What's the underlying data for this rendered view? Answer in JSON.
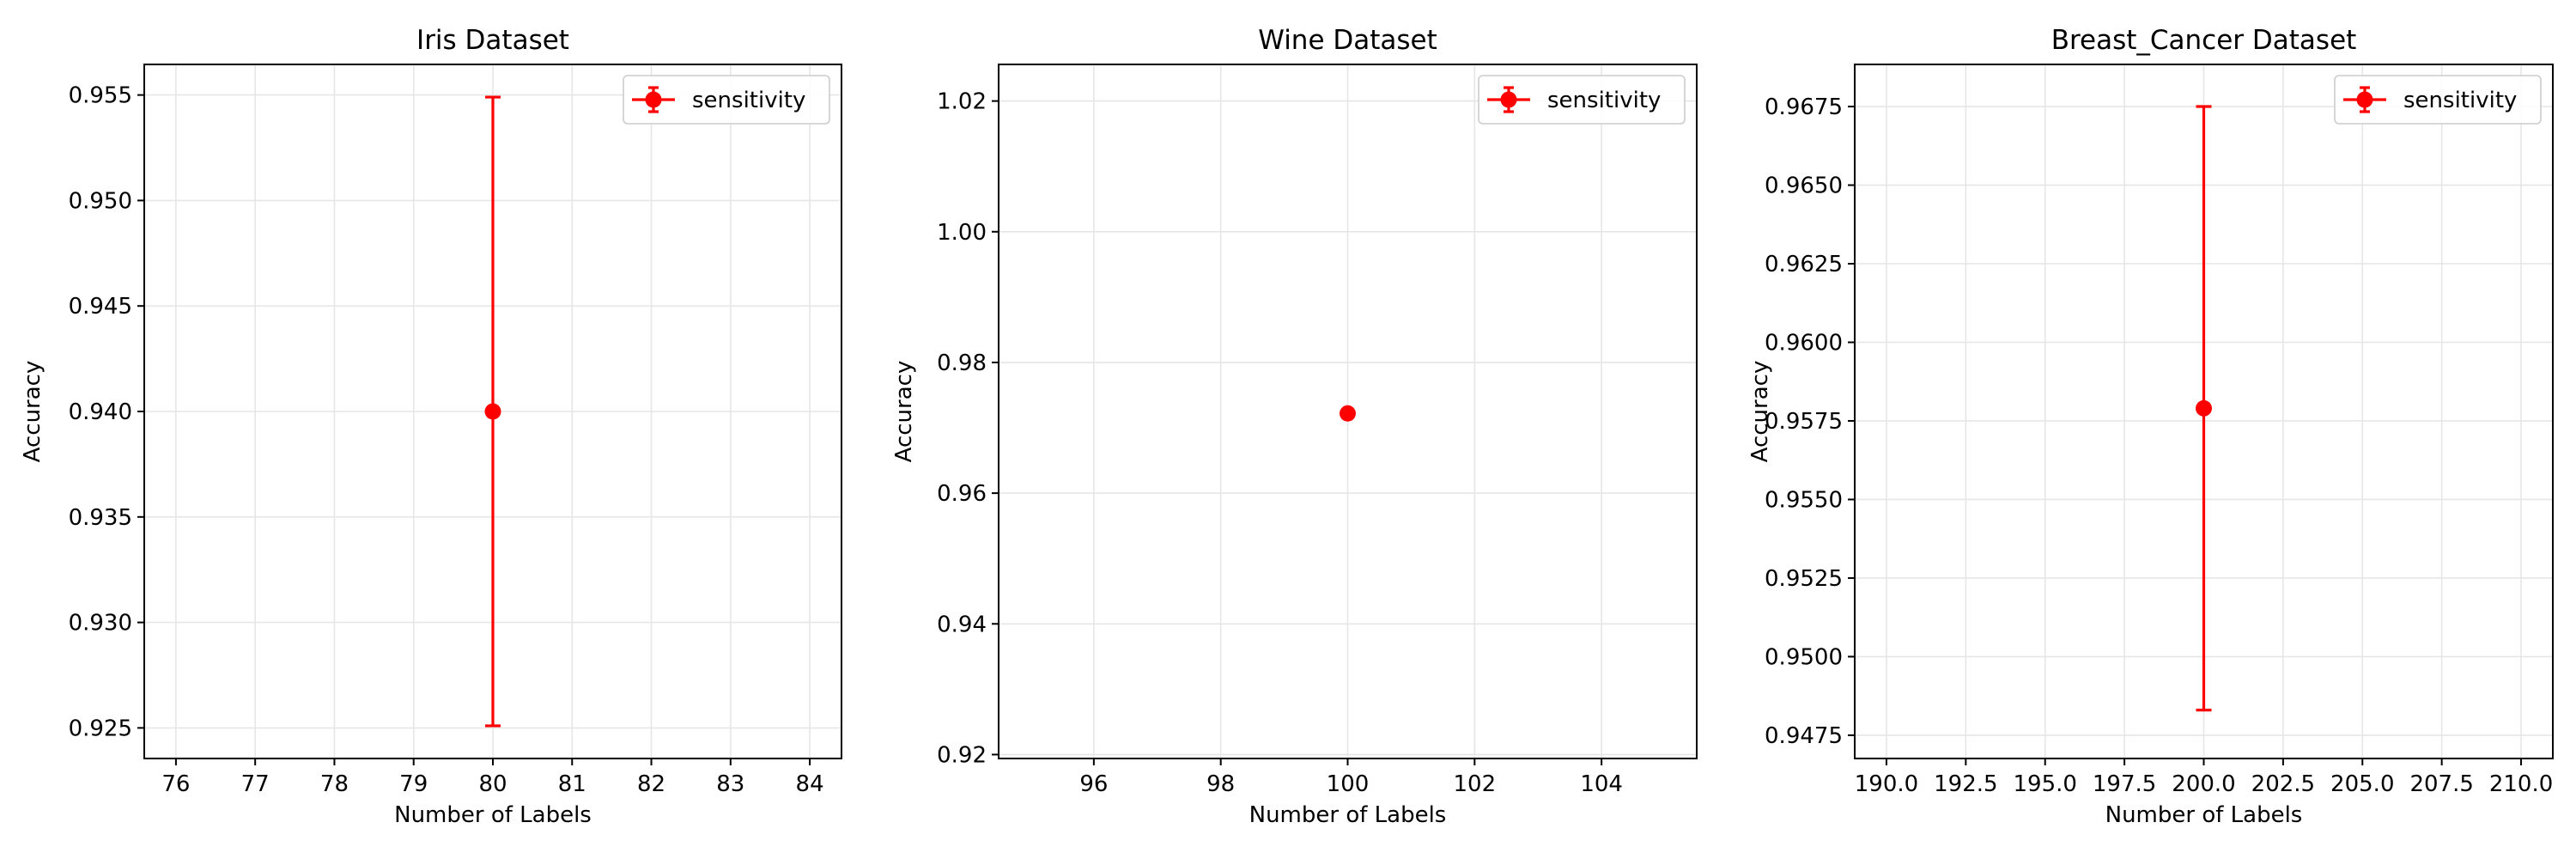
{
  "chart_data": [
    {
      "type": "scatter",
      "title": "Iris Dataset",
      "xlabel": "Number of Labels",
      "ylabel": "Accuracy",
      "xlim": [
        75.6,
        84.4
      ],
      "ylim": [
        0.92355,
        0.95645
      ],
      "xticks": [
        76,
        77,
        78,
        79,
        80,
        81,
        82,
        83,
        84
      ],
      "yticks": [
        0.925,
        0.93,
        0.935,
        0.94,
        0.945,
        0.95,
        0.955
      ],
      "xtick_labels": [
        "76",
        "77",
        "78",
        "79",
        "80",
        "81",
        "82",
        "83",
        "84"
      ],
      "ytick_labels": [
        "0.925",
        "0.930",
        "0.935",
        "0.940",
        "0.945",
        "0.950",
        "0.955"
      ],
      "grid": true,
      "legend_position": "top-right",
      "series": [
        {
          "name": "sensitivity",
          "color": "#ff0000",
          "x": [
            80
          ],
          "y": [
            0.94
          ],
          "yerr_low": [
            0.9251
          ],
          "yerr_high": [
            0.9549
          ]
        }
      ]
    },
    {
      "type": "scatter",
      "title": "Wine Dataset",
      "xlabel": "Number of Labels",
      "ylabel": "Accuracy",
      "xlim": [
        94.5,
        105.5
      ],
      "ylim": [
        0.9194,
        1.0256
      ],
      "xticks": [
        96,
        98,
        100,
        102,
        104
      ],
      "yticks": [
        0.92,
        0.94,
        0.96,
        0.98,
        1.0,
        1.02
      ],
      "xtick_labels": [
        "96",
        "98",
        "100",
        "102",
        "104"
      ],
      "ytick_labels": [
        "0.92",
        "0.94",
        "0.96",
        "0.98",
        "1.00",
        "1.02"
      ],
      "grid": true,
      "legend_position": "top-right",
      "series": [
        {
          "name": "sensitivity",
          "color": "#ff0000",
          "x": [
            100
          ],
          "y": [
            0.9722
          ],
          "yerr_low": [
            0.9722
          ],
          "yerr_high": [
            0.9722
          ]
        }
      ]
    },
    {
      "type": "scatter",
      "title": "Breast_Cancer Dataset",
      "xlabel": "Number of Labels",
      "ylabel": "Accuracy",
      "xlim": [
        189.0,
        211.0
      ],
      "ylim": [
        0.94676,
        0.96884
      ],
      "xticks": [
        190,
        192.5,
        195,
        197.5,
        200,
        202.5,
        205,
        207.5,
        210
      ],
      "yticks": [
        0.9475,
        0.95,
        0.9525,
        0.955,
        0.9575,
        0.96,
        0.9625,
        0.965,
        0.9675
      ],
      "xtick_labels": [
        "190.0",
        "192.5",
        "195.0",
        "197.5",
        "200.0",
        "202.5",
        "205.0",
        "207.5",
        "210.0"
      ],
      "ytick_labels": [
        "0.9475",
        "0.9500",
        "0.9525",
        "0.9550",
        "0.9575",
        "0.9600",
        "0.9625",
        "0.9650",
        "0.9675"
      ],
      "grid": true,
      "legend_position": "top-right",
      "series": [
        {
          "name": "sensitivity",
          "color": "#ff0000",
          "x": [
            200
          ],
          "y": [
            0.9579
          ],
          "yerr_low": [
            0.9483
          ],
          "yerr_high": [
            0.9675
          ]
        }
      ]
    }
  ]
}
